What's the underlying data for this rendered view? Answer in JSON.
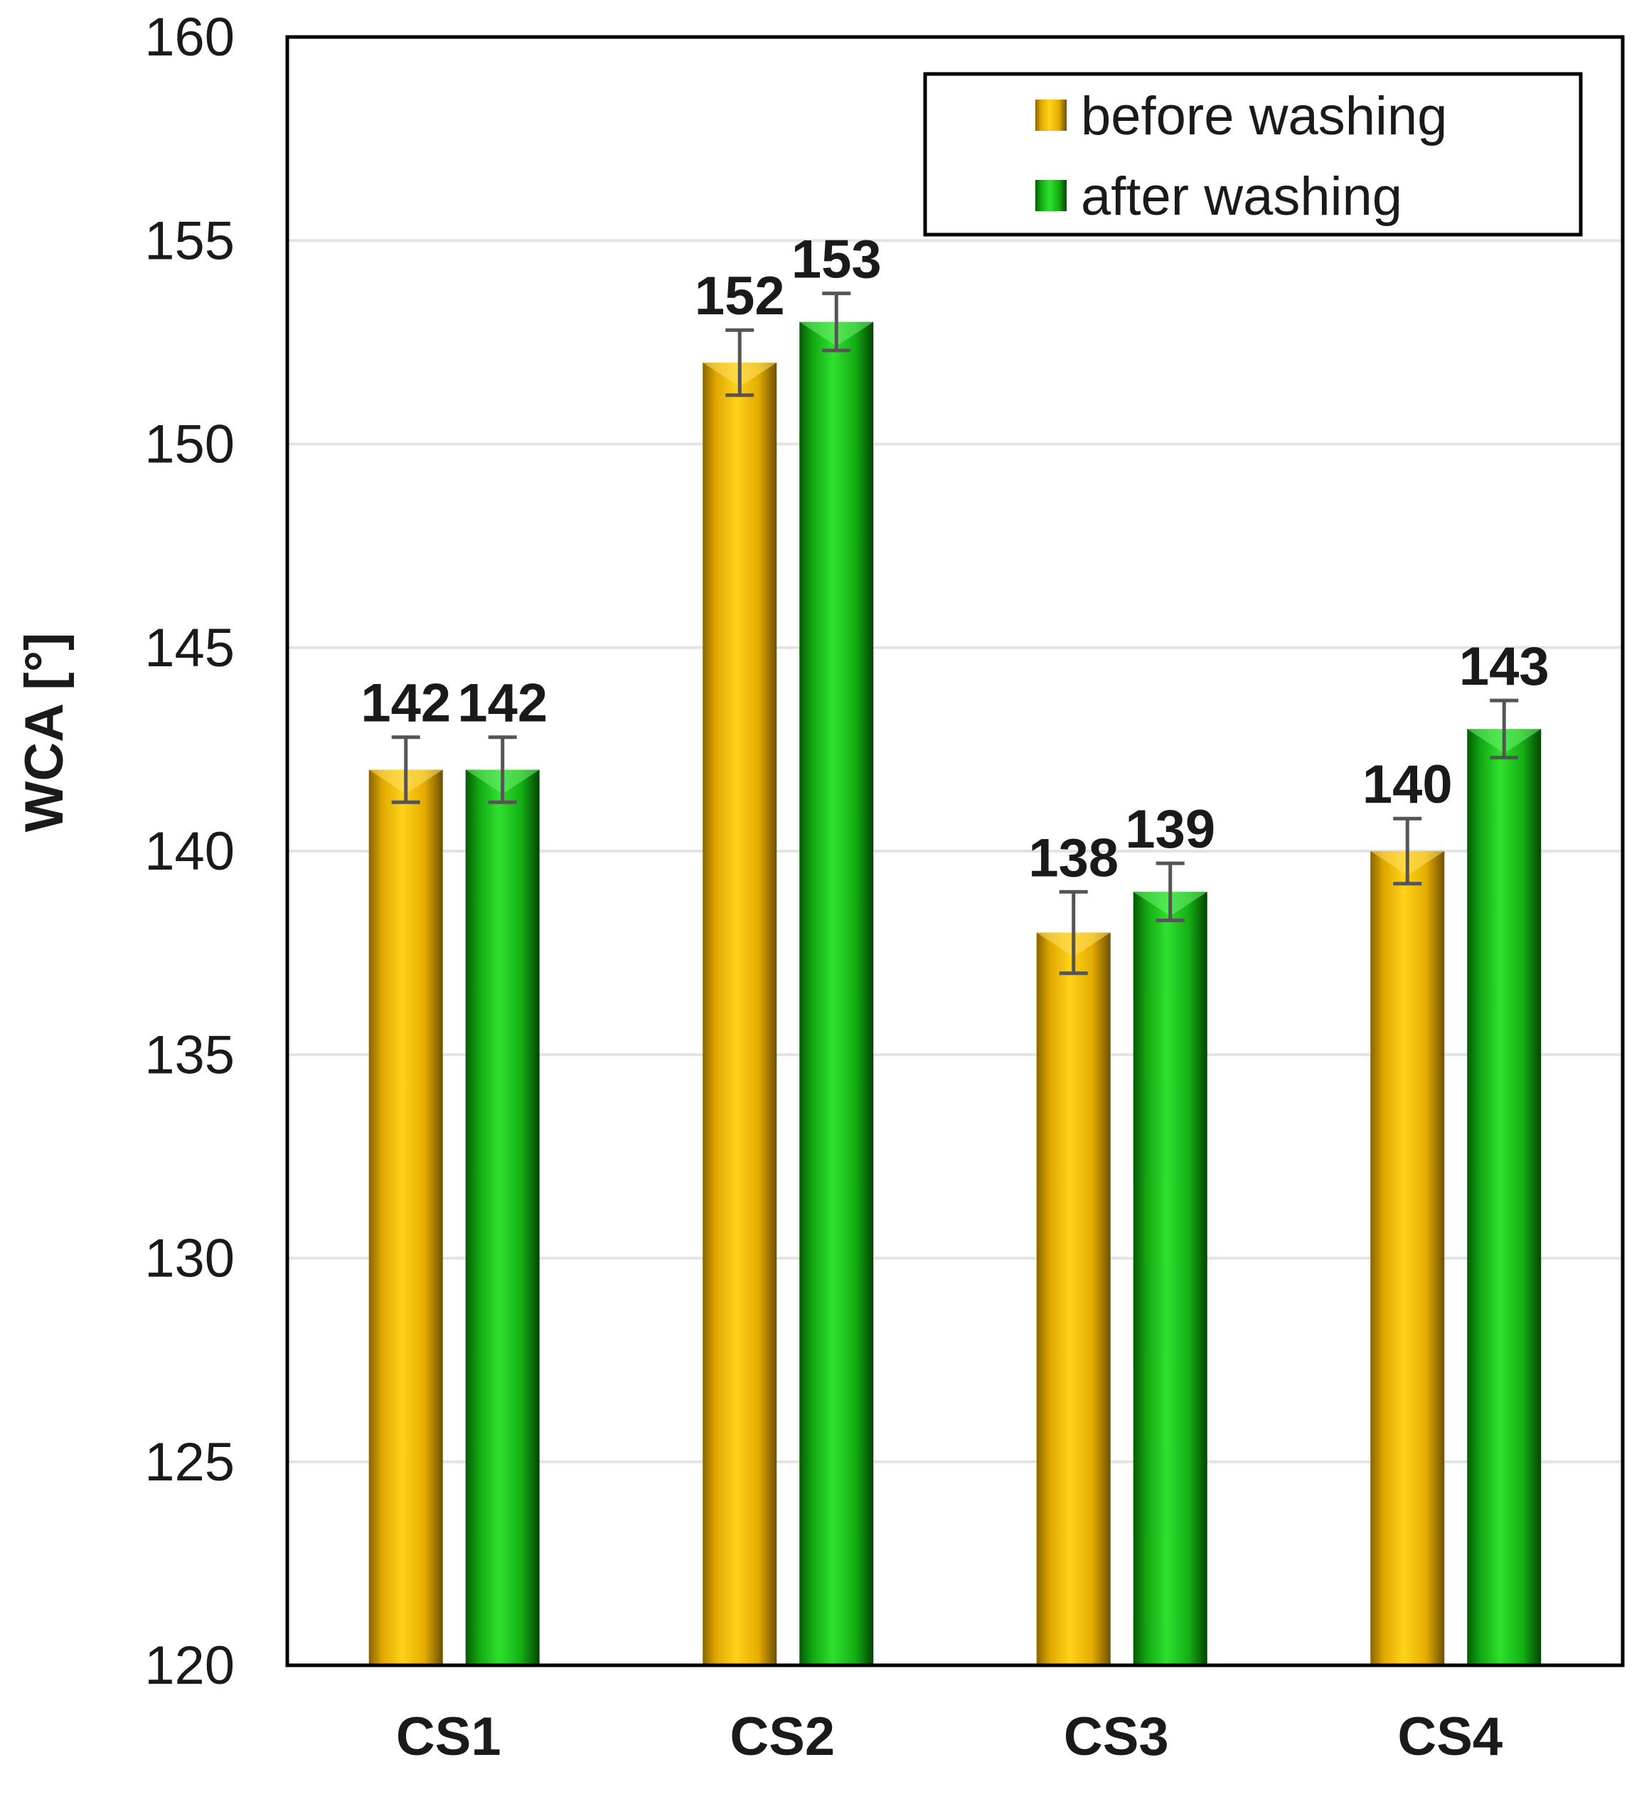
{
  "chart_data": {
    "type": "bar",
    "title": "",
    "xlabel": "",
    "ylabel": "WCA [°]",
    "ylim": [
      120,
      160
    ],
    "yticks": [
      120,
      125,
      130,
      135,
      140,
      145,
      150,
      155,
      160
    ],
    "grid": true,
    "legend_position": "top-right",
    "categories": [
      "CS1",
      "CS2",
      "CS3",
      "CS4"
    ],
    "series": [
      {
        "name": "before washing",
        "color": "#f2b800",
        "values": [
          142,
          152,
          138,
          140
        ],
        "errors": [
          0.8,
          0.8,
          1.0,
          0.8
        ],
        "labels": [
          "142",
          "152",
          "138",
          "140"
        ]
      },
      {
        "name": "after washing",
        "color": "#1fbf1f",
        "values": [
          142,
          153,
          139,
          143
        ],
        "errors": [
          0.8,
          0.7,
          0.7,
          0.7
        ],
        "labels": [
          "142",
          "153",
          "139",
          "143"
        ]
      }
    ]
  }
}
